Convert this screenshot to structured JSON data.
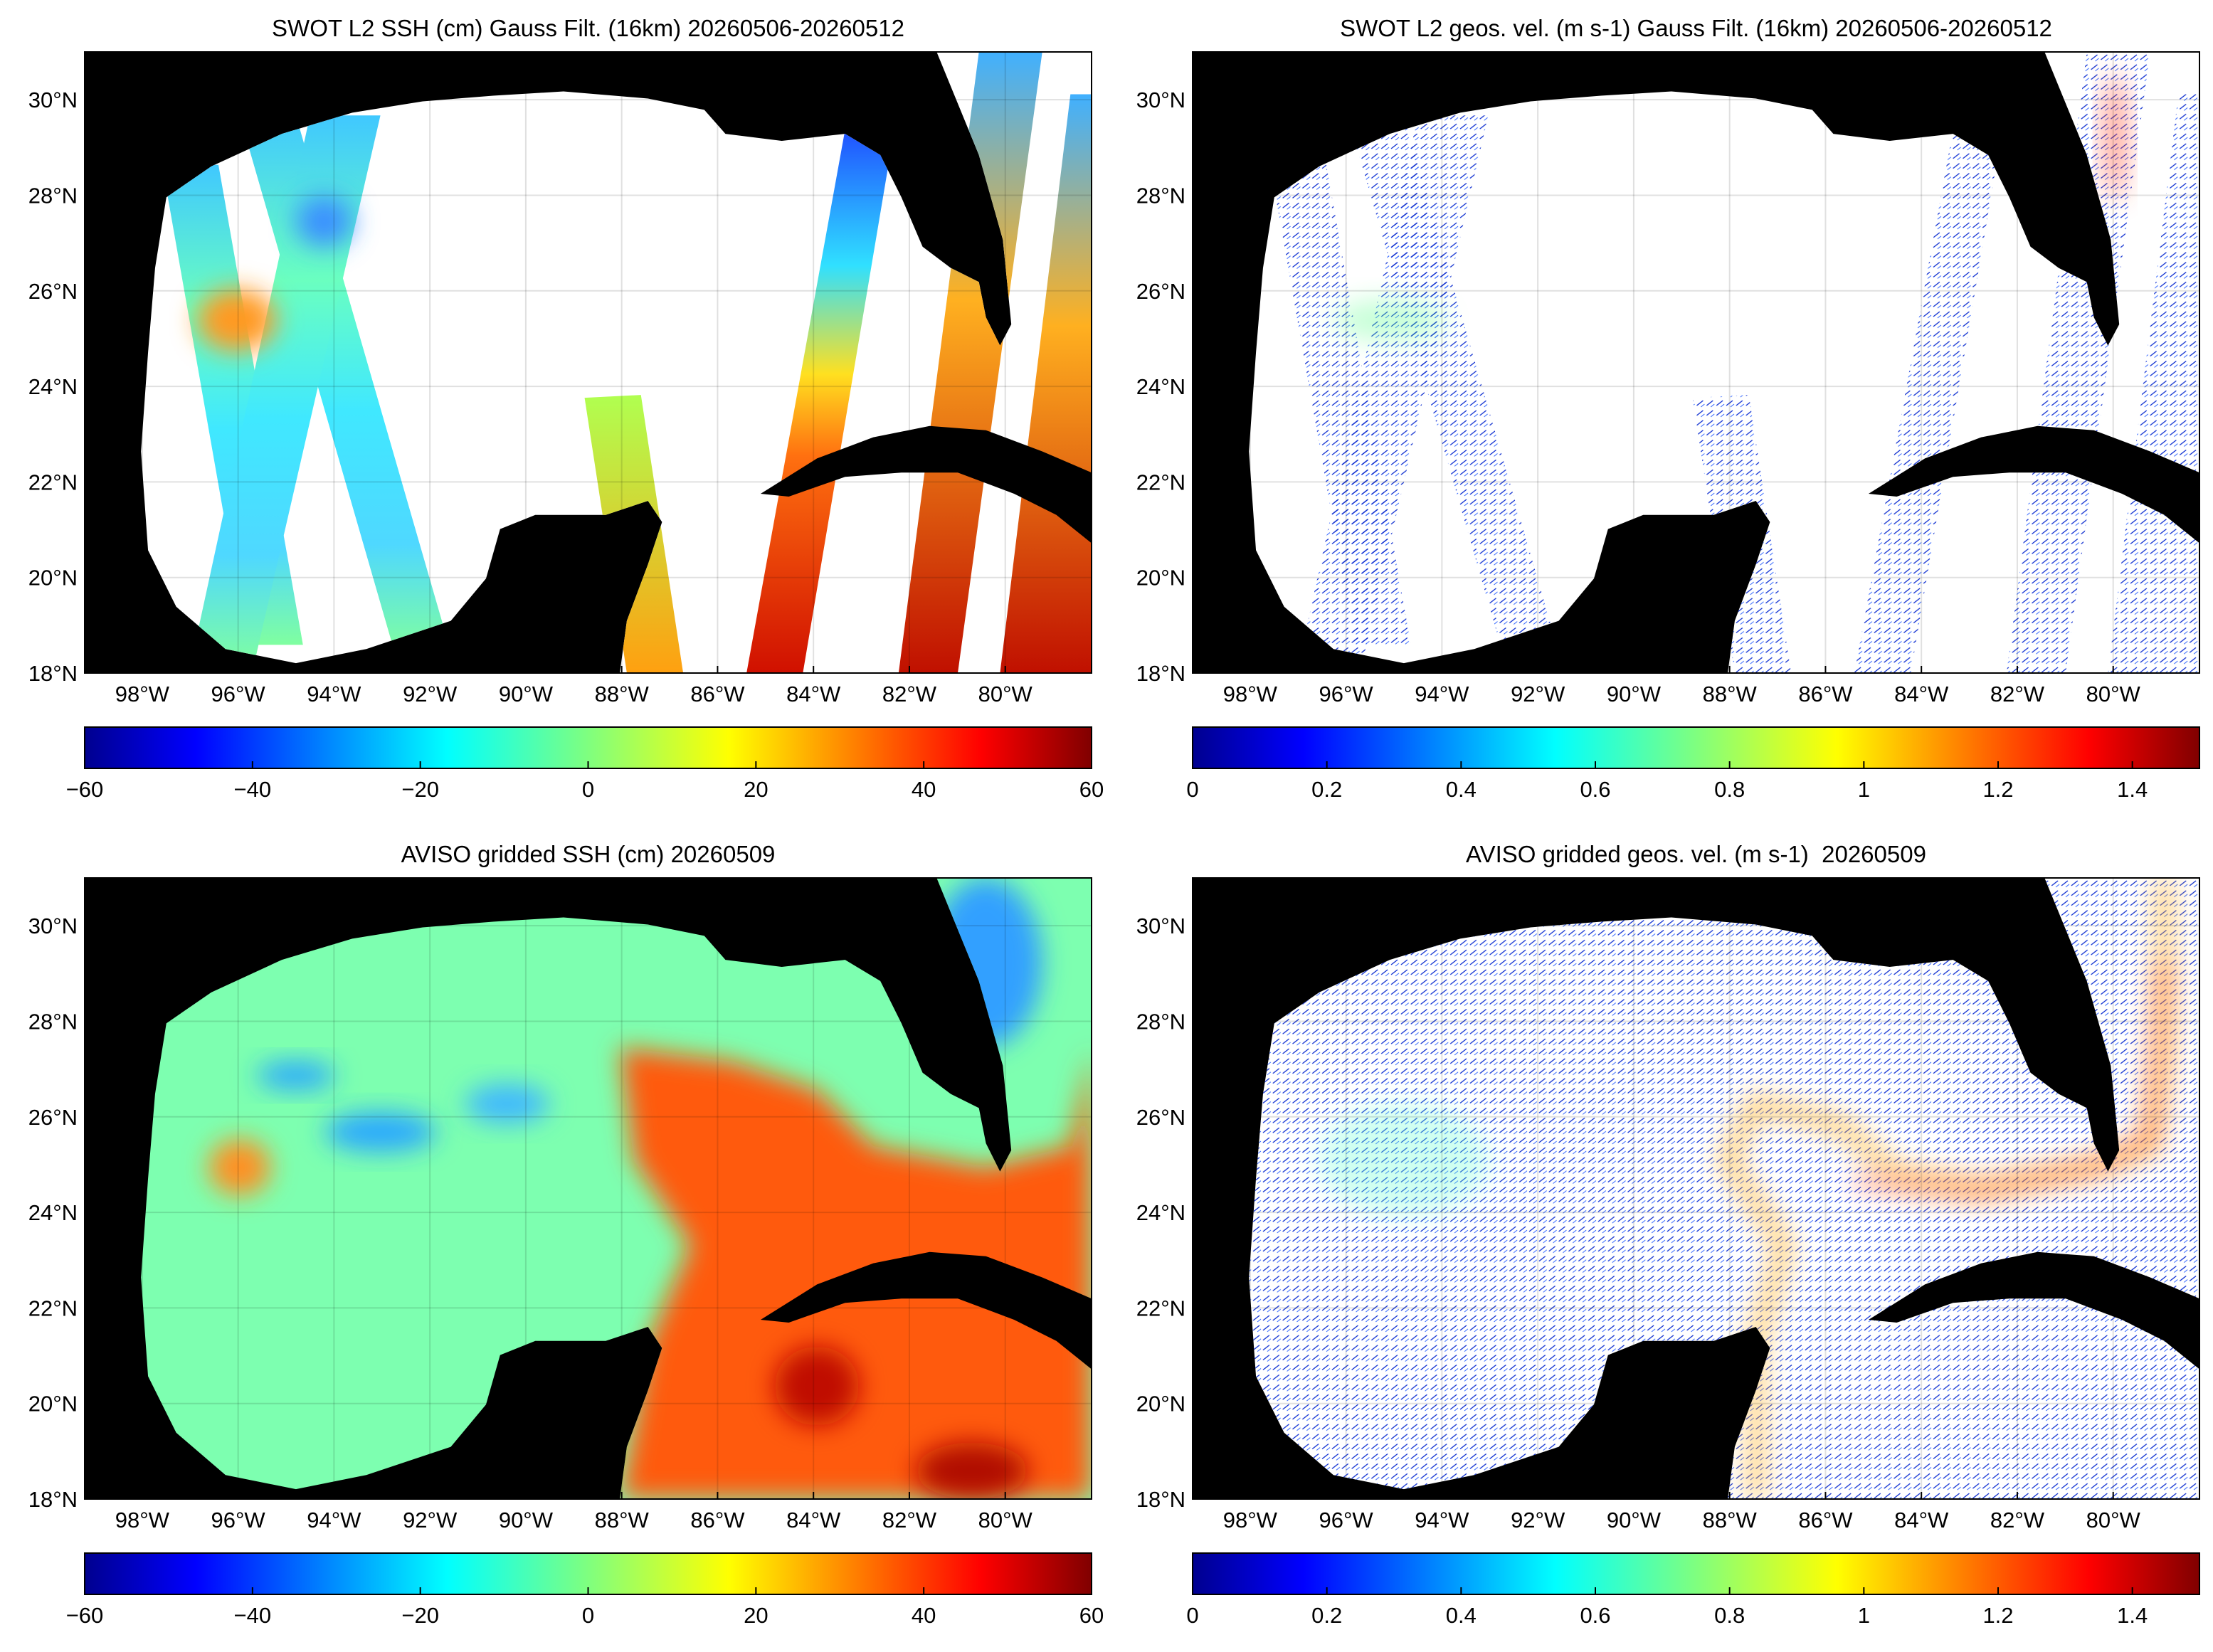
{
  "panels": [
    {
      "title": "SWOT L2 SSH (cm) Gauss Filt. (16km) 20260506-20260512",
      "xlim": [
        -99.2,
        -78.2
      ],
      "ylim": [
        18,
        31
      ],
      "xticks": [
        {
          "value": -98,
          "label": "98°W"
        },
        {
          "value": -96,
          "label": "96°W"
        },
        {
          "value": -94,
          "label": "94°W"
        },
        {
          "value": -92,
          "label": "92°W"
        },
        {
          "value": -90,
          "label": "90°W"
        },
        {
          "value": -88,
          "label": "88°W"
        },
        {
          "value": -86,
          "label": "86°W"
        },
        {
          "value": -84,
          "label": "84°W"
        },
        {
          "value": -82,
          "label": "82°W"
        },
        {
          "value": -80,
          "label": "80°W"
        }
      ],
      "yticks": [
        {
          "value": 18,
          "label": "18°N"
        },
        {
          "value": 20,
          "label": "20°N"
        },
        {
          "value": 22,
          "label": "22°N"
        },
        {
          "value": 24,
          "label": "24°N"
        },
        {
          "value": 26,
          "label": "26°N"
        },
        {
          "value": 28,
          "label": "28°N"
        },
        {
          "value": 30,
          "label": "30°N"
        }
      ],
      "colorbar": {
        "lim": [
          -60,
          60
        ],
        "ticks": [
          {
            "value": -60,
            "label": "−60"
          },
          {
            "value": -40,
            "label": "−40"
          },
          {
            "value": -20,
            "label": "−20"
          },
          0,
          20,
          40,
          60
        ]
      }
    },
    {
      "title": "SWOT L2 geos. vel. (m s-1) Gauss Filt. (16km) 20260506-20260512",
      "xlim": [
        -99.2,
        -78.2
      ],
      "ylim": [
        18,
        31
      ],
      "xticks": [
        {
          "value": -98,
          "label": "98°W"
        },
        {
          "value": -96,
          "label": "96°W"
        },
        {
          "value": -94,
          "label": "94°W"
        },
        {
          "value": -92,
          "label": "92°W"
        },
        {
          "value": -90,
          "label": "90°W"
        },
        {
          "value": -88,
          "label": "88°W"
        },
        {
          "value": -86,
          "label": "86°W"
        },
        {
          "value": -84,
          "label": "84°W"
        },
        {
          "value": -82,
          "label": "82°W"
        },
        {
          "value": -80,
          "label": "80°W"
        }
      ],
      "yticks": [
        {
          "value": 18,
          "label": "18°N"
        },
        {
          "value": 20,
          "label": "20°N"
        },
        {
          "value": 22,
          "label": "22°N"
        },
        {
          "value": 24,
          "label": "24°N"
        },
        {
          "value": 26,
          "label": "26°N"
        },
        {
          "value": 28,
          "label": "28°N"
        },
        {
          "value": 30,
          "label": "30°N"
        }
      ],
      "colorbar": {
        "lim": [
          0,
          1.5
        ],
        "ticks": [
          0,
          0.2,
          0.4,
          0.6,
          0.8,
          1,
          1.2,
          1.4
        ]
      }
    },
    {
      "title": "AVISO gridded SSH (cm) 20260509",
      "xlim": [
        -99.2,
        -78.2
      ],
      "ylim": [
        18,
        31
      ],
      "xticks": [
        {
          "value": -98,
          "label": "98°W"
        },
        {
          "value": -96,
          "label": "96°W"
        },
        {
          "value": -94,
          "label": "94°W"
        },
        {
          "value": -92,
          "label": "92°W"
        },
        {
          "value": -90,
          "label": "90°W"
        },
        {
          "value": -88,
          "label": "88°W"
        },
        {
          "value": -86,
          "label": "86°W"
        },
        {
          "value": -84,
          "label": "84°W"
        },
        {
          "value": -82,
          "label": "82°W"
        },
        {
          "value": -80,
          "label": "80°W"
        }
      ],
      "yticks": [
        {
          "value": 18,
          "label": "18°N"
        },
        {
          "value": 20,
          "label": "20°N"
        },
        {
          "value": 22,
          "label": "22°N"
        },
        {
          "value": 24,
          "label": "24°N"
        },
        {
          "value": 26,
          "label": "26°N"
        },
        {
          "value": 28,
          "label": "28°N"
        },
        {
          "value": 30,
          "label": "30°N"
        }
      ],
      "colorbar": {
        "lim": [
          -60,
          60
        ],
        "ticks": [
          {
            "value": -60,
            "label": "−60"
          },
          {
            "value": -40,
            "label": "−40"
          },
          {
            "value": -20,
            "label": "−20"
          },
          0,
          20,
          40,
          60
        ]
      }
    },
    {
      "title": "AVISO gridded geos. vel. (m s-1)  20260509",
      "xlim": [
        -99.2,
        -78.2
      ],
      "ylim": [
        18,
        31
      ],
      "xticks": [
        {
          "value": -98,
          "label": "98°W"
        },
        {
          "value": -96,
          "label": "96°W"
        },
        {
          "value": -94,
          "label": "94°W"
        },
        {
          "value": -92,
          "label": "92°W"
        },
        {
          "value": -90,
          "label": "90°W"
        },
        {
          "value": -88,
          "label": "88°W"
        },
        {
          "value": -86,
          "label": "86°W"
        },
        {
          "value": -84,
          "label": "84°W"
        },
        {
          "value": -82,
          "label": "82°W"
        },
        {
          "value": -80,
          "label": "80°W"
        }
      ],
      "yticks": [
        {
          "value": 18,
          "label": "18°N"
        },
        {
          "value": 20,
          "label": "20°N"
        },
        {
          "value": 22,
          "label": "22°N"
        },
        {
          "value": 24,
          "label": "24°N"
        },
        {
          "value": 26,
          "label": "26°N"
        },
        {
          "value": 28,
          "label": "28°N"
        },
        {
          "value": 30,
          "label": "30°N"
        }
      ],
      "colorbar": {
        "lim": [
          0,
          1.5
        ],
        "ticks": [
          0,
          0.2,
          0.4,
          0.6,
          0.8,
          1,
          1.2,
          1.4
        ]
      }
    }
  ]
}
